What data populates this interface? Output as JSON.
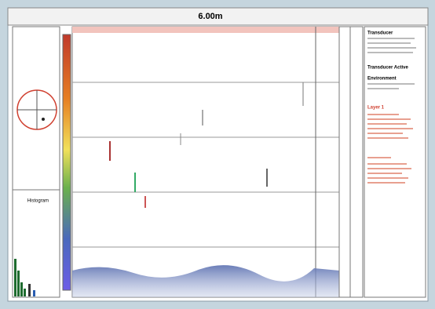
{
  "header": {
    "title": "6.00m"
  },
  "histogram": {
    "label": "Histogram"
  },
  "info_panel": {
    "sections": [
      {
        "heading": "Transducer"
      },
      {
        "heading": "Transducer Active"
      },
      {
        "heading": "Environment"
      },
      {
        "heading": "Layer 1"
      }
    ]
  }
}
